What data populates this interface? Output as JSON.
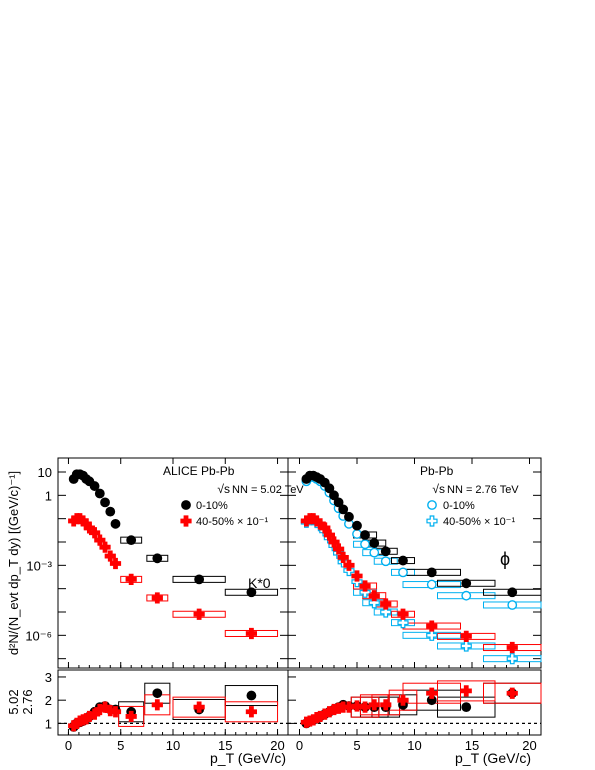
{
  "chart_data": {
    "type": "scatter",
    "y_title": "d²N/(N_evt dp_T dy) [(GeV/c)⁻¹]",
    "ratio_title_top": "5.02",
    "ratio_title_bottom": "2.76",
    "x_title": "p_T (GeV/c)",
    "xlim": [
      -1,
      21
    ],
    "ylim_spectra_log10": [
      -7.4,
      1.6
    ],
    "ylim_ratio": [
      0.5,
      3.3
    ],
    "x_ticks": [
      "0",
      "5",
      "10",
      "15",
      "20"
    ],
    "y_ticks": [
      "10",
      "1",
      "10⁻³",
      "10⁻⁶"
    ],
    "ratio_ticks": [
      "1",
      "2",
      "3"
    ],
    "panels": [
      {
        "header": "ALICE Pb-Pb",
        "energy": "5.02 TeV",
        "particle": "K*0",
        "legend": [
          "0-10%",
          "40-50% × 10⁻¹"
        ],
        "central": {
          "x": [
            0.5,
            0.8,
            1.1,
            1.4,
            1.7,
            2.0,
            2.5,
            3.0,
            3.5,
            4.0,
            4.5,
            6.0,
            8.5,
            12.5,
            17.5
          ],
          "y": [
            5.0,
            8.0,
            8.0,
            7.0,
            5.0,
            4.0,
            2.5,
            1.2,
            0.5,
            0.2,
            0.06,
            0.012,
            0.002,
            0.00025,
            7e-05
          ]
        },
        "peripheral": {
          "x": [
            0.5,
            0.8,
            1.1,
            1.4,
            1.7,
            2.0,
            2.5,
            3.0,
            3.5,
            4.0,
            4.5,
            6.0,
            8.5,
            12.5,
            17.5
          ],
          "y": [
            0.08,
            0.1,
            0.1,
            0.08,
            0.06,
            0.04,
            0.025,
            0.012,
            0.006,
            0.0025,
            0.0012,
            0.00025,
            4e-05,
            8e-06,
            1.2e-06
          ]
        },
        "ratio_central": {
          "x": [
            0.5,
            0.8,
            1.1,
            1.4,
            1.7,
            2.0,
            2.5,
            3.0,
            3.5,
            4.0,
            4.5,
            6.0,
            8.5,
            12.5,
            17.5
          ],
          "y": [
            0.85,
            1.0,
            1.05,
            1.1,
            1.2,
            1.3,
            1.5,
            1.7,
            1.75,
            1.6,
            1.6,
            1.5,
            2.3,
            1.6,
            2.2
          ]
        },
        "ratio_peripheral": {
          "x": [
            0.5,
            0.8,
            1.1,
            1.4,
            1.7,
            2.0,
            2.5,
            3.0,
            3.5,
            4.0,
            4.5,
            6.0,
            8.5,
            12.5,
            17.5
          ],
          "y": [
            0.9,
            1.0,
            1.1,
            1.15,
            1.2,
            1.3,
            1.4,
            1.6,
            1.7,
            1.55,
            1.5,
            1.3,
            1.8,
            1.7,
            1.5
          ]
        }
      },
      {
        "header": "Pb-Pb",
        "energy": "2.76 TeV",
        "particle": "ϕ",
        "legend": [
          "0-10%",
          "40-50% × 10⁻¹"
        ],
        "central": {
          "x": [
            0.6,
            0.9,
            1.2,
            1.5,
            1.8,
            2.2,
            2.6,
            3.0,
            3.4,
            3.8,
            4.3,
            5.0,
            5.7,
            6.5,
            7.5,
            9.0,
            11.5,
            14.5,
            18.5
          ],
          "y": [
            5.0,
            7.0,
            7.0,
            6.0,
            5.0,
            3.5,
            2.0,
            1.0,
            0.5,
            0.25,
            0.12,
            0.05,
            0.02,
            0.009,
            0.004,
            0.0016,
            0.0005,
            0.00017,
            7e-05
          ]
        },
        "central_276": {
          "x": [
            0.6,
            0.9,
            1.2,
            1.5,
            1.8,
            2.2,
            2.6,
            3.0,
            3.4,
            3.8,
            4.3,
            5.0,
            5.7,
            6.5,
            7.5,
            9.0,
            11.5,
            14.5,
            18.5
          ],
          "y": [
            4.0,
            6.0,
            6.0,
            5.0,
            4.0,
            2.5,
            1.3,
            0.6,
            0.28,
            0.13,
            0.06,
            0.022,
            0.008,
            0.0035,
            0.0015,
            0.0005,
            0.00015,
            5e-05,
            2e-05
          ]
        },
        "peripheral": {
          "x": [
            0.6,
            0.9,
            1.2,
            1.5,
            1.8,
            2.2,
            2.6,
            3.0,
            3.4,
            3.8,
            4.3,
            5.0,
            5.7,
            6.5,
            7.5,
            9.0,
            11.5,
            14.5,
            18.5
          ],
          "y": [
            0.08,
            0.1,
            0.1,
            0.08,
            0.06,
            0.04,
            0.02,
            0.01,
            0.005,
            0.0022,
            0.001,
            0.00035,
            0.00013,
            5e-05,
            2.2e-05,
            8e-06,
            2.5e-06,
            9e-07,
            3e-07
          ]
        },
        "peripheral_276": {
          "x": [
            0.6,
            0.9,
            1.2,
            1.5,
            1.8,
            2.2,
            2.6,
            3.0,
            3.4,
            3.8,
            4.3,
            5.0,
            5.7,
            6.5,
            7.5,
            9.0,
            11.5,
            14.5,
            18.5
          ],
          "y": [
            0.07,
            0.09,
            0.09,
            0.07,
            0.05,
            0.03,
            0.015,
            0.007,
            0.0033,
            0.0014,
            0.0006,
            0.0002,
            7e-05,
            2.5e-05,
            1e-05,
            3.5e-06,
            1e-06,
            3.5e-07,
            1e-07
          ]
        },
        "ratio_central": {
          "x": [
            0.6,
            0.9,
            1.2,
            1.5,
            1.8,
            2.2,
            2.6,
            3.0,
            3.4,
            3.8,
            4.3,
            5.0,
            5.7,
            6.5,
            7.5,
            9.0,
            11.5,
            14.5,
            18.5
          ],
          "y": [
            1.0,
            1.1,
            1.15,
            1.2,
            1.3,
            1.4,
            1.5,
            1.6,
            1.7,
            1.8,
            1.75,
            1.75,
            1.7,
            1.7,
            1.7,
            1.8,
            2.0,
            1.7,
            2.3
          ]
        },
        "ratio_peripheral": {
          "x": [
            0.6,
            0.9,
            1.2,
            1.5,
            1.8,
            2.2,
            2.6,
            3.0,
            3.4,
            3.8,
            4.3,
            5.0,
            5.7,
            6.5,
            7.5,
            9.0,
            11.5,
            14.5,
            18.5
          ],
          "y": [
            1.05,
            1.1,
            1.15,
            1.25,
            1.3,
            1.4,
            1.5,
            1.6,
            1.65,
            1.7,
            1.7,
            1.75,
            1.7,
            1.8,
            1.8,
            2.0,
            2.3,
            2.4,
            2.3
          ]
        }
      }
    ],
    "colors": {
      "central_502": "#000000",
      "peripheral_502": "#ff0000",
      "central_276": "#00b0f0",
      "peripheral_276": "#00b0f0",
      "dashed_line": "#000000"
    }
  }
}
